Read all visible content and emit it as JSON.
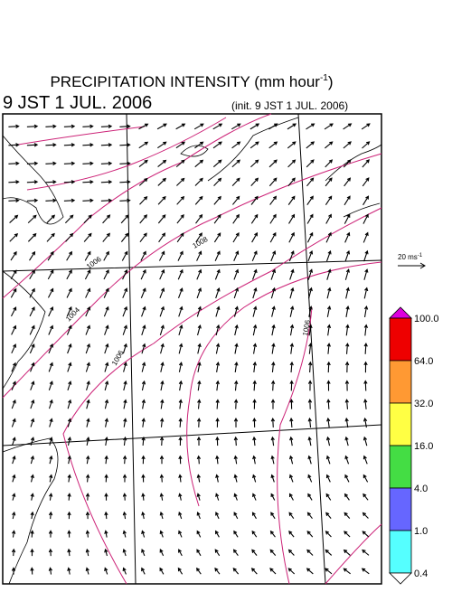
{
  "header": {
    "title": "PRECIPITATION INTENSITY (mm hour",
    "title_sup": "-1",
    "title_end": ")",
    "valid_time": "9 JST 1 JUL. 2006",
    "init_time": "(init. 9 JST 1 JUL. 2006)"
  },
  "wind_reference": {
    "label": "20 ms",
    "label_sup": "-1"
  },
  "isobars": [
    {
      "label": "1006"
    },
    {
      "label": "1004"
    },
    {
      "label": "1008"
    },
    {
      "label": "1006"
    },
    {
      "label": "1006"
    }
  ],
  "colorbar": {
    "labels": [
      "100.0",
      "64.0",
      "32.0",
      "16.0",
      "4.0",
      "1.0",
      "0.4"
    ],
    "colors": [
      "#dd00dd",
      "#ee0000",
      "#ff9933",
      "#ffff44",
      "#44dd44",
      "#6666ff",
      "#55ffff",
      "#ffffff"
    ]
  }
}
